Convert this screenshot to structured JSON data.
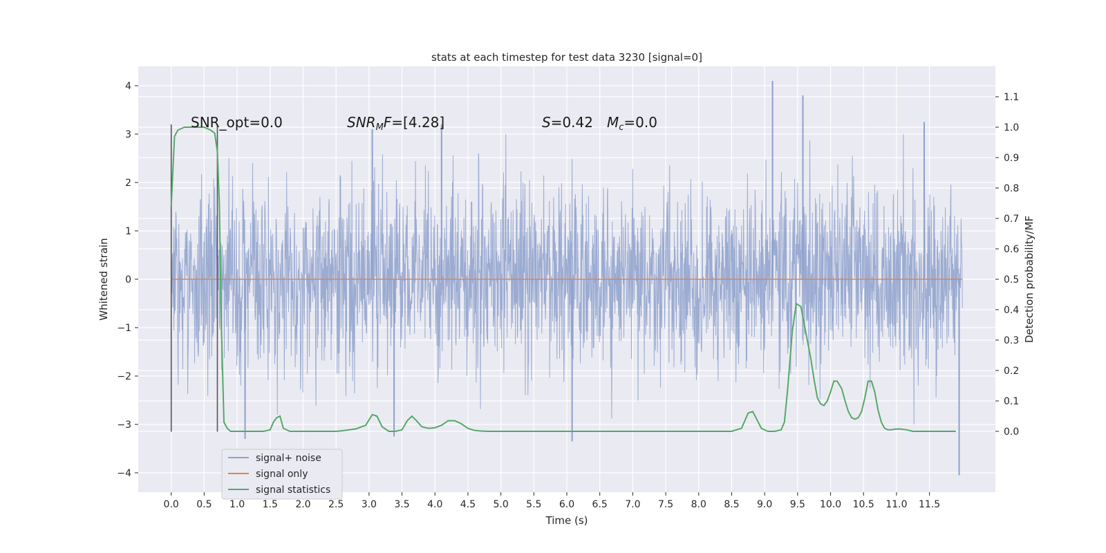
{
  "chart_data": {
    "type": "line",
    "title": "stats at each timestep for test data 3230 [signal=0]",
    "xlabel": "Time (s)",
    "ylabel": "Whitened strain",
    "ylabel_right": "Detection probability/MF",
    "xlim": [
      -0.5,
      12.5
    ],
    "ylim": [
      -4.4,
      4.4
    ],
    "ylim_right": [
      -0.2,
      1.2
    ],
    "x_ticks": [
      0.0,
      0.5,
      1.0,
      1.5,
      2.0,
      2.5,
      3.0,
      3.5,
      4.0,
      4.5,
      5.0,
      5.5,
      6.0,
      6.5,
      7.0,
      7.5,
      8.0,
      8.5,
      9.0,
      9.5,
      10.0,
      10.5,
      11.0,
      11.5
    ],
    "x_tick_labels": [
      "0.0",
      "0.5",
      "1.0",
      "1.5",
      "2.0",
      "2.5",
      "3.0",
      "3.5",
      "4.0",
      "4.5",
      "5.0",
      "5.5",
      "6.0",
      "6.5",
      "7.0",
      "7.5",
      "8.0",
      "8.5",
      "9.0",
      "9.5",
      "10.0",
      "10.5",
      "11.0",
      "11.5"
    ],
    "y_ticks": [
      4,
      3,
      2,
      1,
      0,
      -1,
      -2,
      -3,
      -4
    ],
    "y_tick_labels": [
      "4",
      "3",
      "2",
      "1",
      "0",
      "−1",
      "−2",
      "−3",
      "−4"
    ],
    "y_ticks_right": [
      1.1,
      1.0,
      0.9,
      0.8,
      0.7,
      0.6,
      0.5,
      0.4,
      0.3,
      0.2,
      0.1,
      0.0
    ],
    "y_tick_labels_right": [
      "1.1",
      "1.0",
      "0.9",
      "0.8",
      "0.7",
      "0.6",
      "0.5",
      "0.4",
      "0.3",
      "0.2",
      "0.1",
      "0.0"
    ],
    "grid": true,
    "legend_position": "lower-left",
    "annotations": [
      "SNR_opt=0.0",
      "SNR_MF=[4.28]",
      "S=0.42",
      "M_c=0.0"
    ],
    "vertical_lines": [
      {
        "x": 0.0,
        "y": [
          -3.15,
          3.2
        ]
      },
      {
        "x": 0.7,
        "y": [
          -3.15,
          3.2
        ]
      }
    ],
    "noise_extremes": [
      {
        "x": 9.12,
        "y": 4.1
      },
      {
        "x": 9.58,
        "y": 3.8
      },
      {
        "x": 11.42,
        "y": 3.25
      },
      {
        "x": 11.95,
        "y": -4.05
      },
      {
        "x": 6.08,
        "y": -3.35
      },
      {
        "x": 1.12,
        "y": -3.3
      },
      {
        "x": 3.38,
        "y": -3.25
      },
      {
        "x": 3.05,
        "y": 3.1
      },
      {
        "x": 4.1,
        "y": 3.2
      }
    ],
    "series": [
      {
        "name": "signal+ noise",
        "color": "#8da0cb",
        "description_range": [
          -4.05,
          4.1
        ],
        "x_start": 0.0,
        "x_end": 12.0
      },
      {
        "name": "signal only",
        "color": "#dd8452",
        "x": [
          0.0,
          12.0
        ],
        "y": [
          0.0,
          0.0
        ]
      },
      {
        "name": "signal statistics",
        "color": "#55a868",
        "axis": "right",
        "x": [
          0.0,
          0.05,
          0.1,
          0.2,
          0.3,
          0.4,
          0.5,
          0.6,
          0.66,
          0.7,
          0.73,
          0.76,
          0.8,
          0.85,
          0.9,
          1.0,
          1.2,
          1.4,
          1.5,
          1.55,
          1.6,
          1.65,
          1.7,
          1.8,
          2.0,
          2.2,
          2.5,
          2.6,
          2.8,
          2.95,
          3.05,
          3.12,
          3.2,
          3.3,
          3.4,
          3.5,
          3.58,
          3.65,
          3.72,
          3.8,
          3.9,
          4.0,
          4.1,
          4.2,
          4.3,
          4.4,
          4.5,
          4.6,
          4.7,
          4.8,
          5.0,
          5.5,
          6.0,
          6.5,
          7.0,
          7.5,
          8.0,
          8.5,
          8.65,
          8.75,
          8.82,
          8.88,
          8.95,
          9.05,
          9.15,
          9.25,
          9.3,
          9.35,
          9.42,
          9.48,
          9.55,
          9.62,
          9.7,
          9.75,
          9.8,
          9.85,
          9.9,
          9.95,
          10.0,
          10.05,
          10.1,
          10.17,
          10.22,
          10.27,
          10.32,
          10.37,
          10.42,
          10.47,
          10.52,
          10.57,
          10.62,
          10.67,
          10.72,
          10.77,
          10.82,
          10.87,
          10.92,
          10.97,
          11.05,
          11.15,
          11.25,
          11.35,
          11.5,
          11.6,
          11.75,
          11.9
        ],
        "y": [
          0.74,
          0.97,
          0.99,
          1.0,
          1.0,
          1.0,
          1.0,
          0.99,
          0.98,
          0.92,
          0.75,
          0.35,
          0.03,
          0.01,
          0.0,
          0.0,
          0.0,
          0.0,
          0.005,
          0.03,
          0.045,
          0.05,
          0.01,
          0.0,
          0.0,
          0.0,
          0.0,
          0.002,
          0.008,
          0.02,
          0.055,
          0.05,
          0.015,
          0.0,
          0.0,
          0.005,
          0.035,
          0.05,
          0.035,
          0.015,
          0.01,
          0.012,
          0.02,
          0.035,
          0.035,
          0.025,
          0.01,
          0.003,
          0.001,
          0.0,
          0.0,
          0.0,
          0.0,
          0.0,
          0.0,
          0.0,
          0.0,
          0.0,
          0.01,
          0.06,
          0.065,
          0.04,
          0.01,
          0.0,
          0.0,
          0.005,
          0.03,
          0.14,
          0.33,
          0.42,
          0.41,
          0.33,
          0.24,
          0.17,
          0.11,
          0.09,
          0.085,
          0.1,
          0.13,
          0.165,
          0.165,
          0.14,
          0.1,
          0.065,
          0.045,
          0.04,
          0.045,
          0.065,
          0.11,
          0.165,
          0.165,
          0.13,
          0.07,
          0.03,
          0.01,
          0.005,
          0.005,
          0.007,
          0.008,
          0.005,
          0.0,
          0.0,
          0.0,
          0.0,
          0.0,
          0.0
        ]
      }
    ]
  }
}
